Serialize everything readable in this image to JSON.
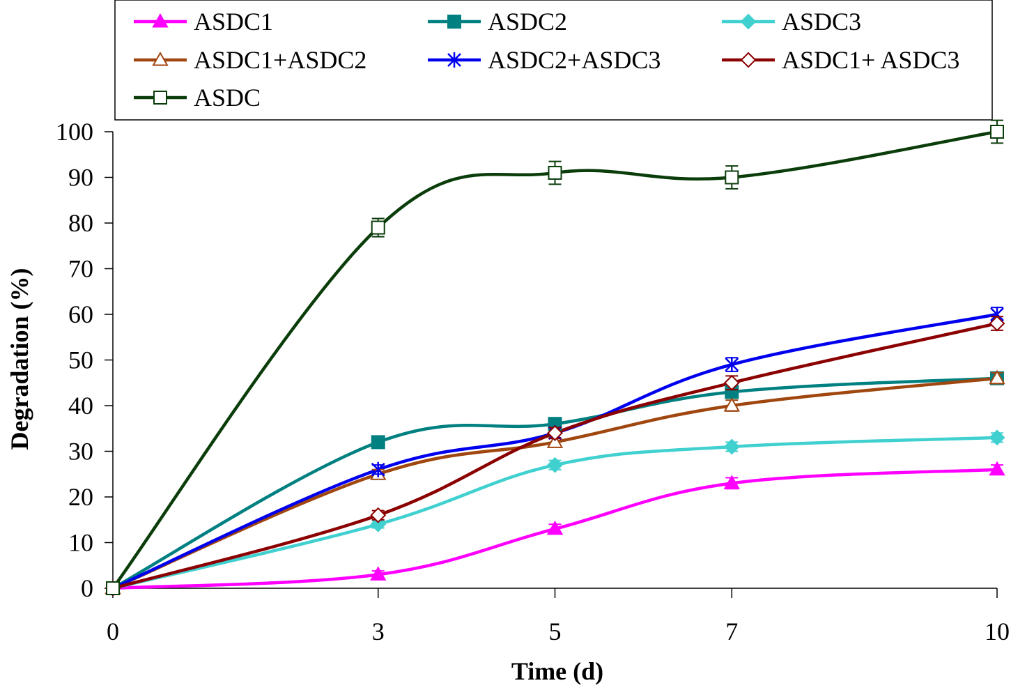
{
  "chart_data": {
    "type": "line",
    "title": "",
    "xlabel": "Time (d)",
    "ylabel": "Degradation (%)",
    "x": [
      0,
      3,
      5,
      7,
      10
    ],
    "x_ticks": [
      "0",
      "3",
      "5",
      "7",
      "10"
    ],
    "y_ticks": [
      "0",
      "10",
      "20",
      "30",
      "40",
      "50",
      "60",
      "70",
      "80",
      "90",
      "100"
    ],
    "xlim": [
      0,
      10
    ],
    "ylim": [
      0,
      100
    ],
    "grid": false,
    "legend_position": "top",
    "series": [
      {
        "name": "ASDC1",
        "values": [
          0,
          3,
          13,
          23,
          26
        ],
        "color": "#ff00ff",
        "marker": "triangle-filled",
        "error": [
          0,
          0.8,
          1,
          1.2,
          1
        ]
      },
      {
        "name": "ASDC2",
        "values": [
          0,
          32,
          36,
          43,
          46
        ],
        "color": "#008080",
        "marker": "square-filled",
        "error": [
          0,
          1,
          1.2,
          1.2,
          1.2
        ]
      },
      {
        "name": "ASDC3",
        "values": [
          0,
          14,
          27,
          31,
          33
        ],
        "color": "#40d0d0",
        "marker": "diamond-filled",
        "error": [
          0,
          0.8,
          1,
          1,
          1
        ]
      },
      {
        "name": "ASDC1+ASDC2",
        "values": [
          0,
          25,
          32,
          40,
          46
        ],
        "color": "#a0460f",
        "marker": "triangle-open",
        "error": [
          0,
          1,
          1,
          1.2,
          1.2
        ]
      },
      {
        "name": "ASDC2+ASDC3",
        "values": [
          0,
          26,
          34,
          49,
          60
        ],
        "color": "#0000ee",
        "marker": "star",
        "error": [
          0,
          1,
          1.2,
          1.5,
          1.5
        ]
      },
      {
        "name": "ASDC1+ ASDC3",
        "values": [
          0,
          16,
          34,
          45,
          58
        ],
        "color": "#8b0000",
        "marker": "diamond-open",
        "error": [
          0,
          1,
          1.2,
          1.5,
          1.5
        ]
      },
      {
        "name": "ASDC",
        "values": [
          0,
          79,
          91,
          90,
          100
        ],
        "color": "#0b3d0b",
        "marker": "square-open",
        "error": [
          0,
          2,
          2.5,
          2.5,
          2.5
        ]
      }
    ]
  }
}
